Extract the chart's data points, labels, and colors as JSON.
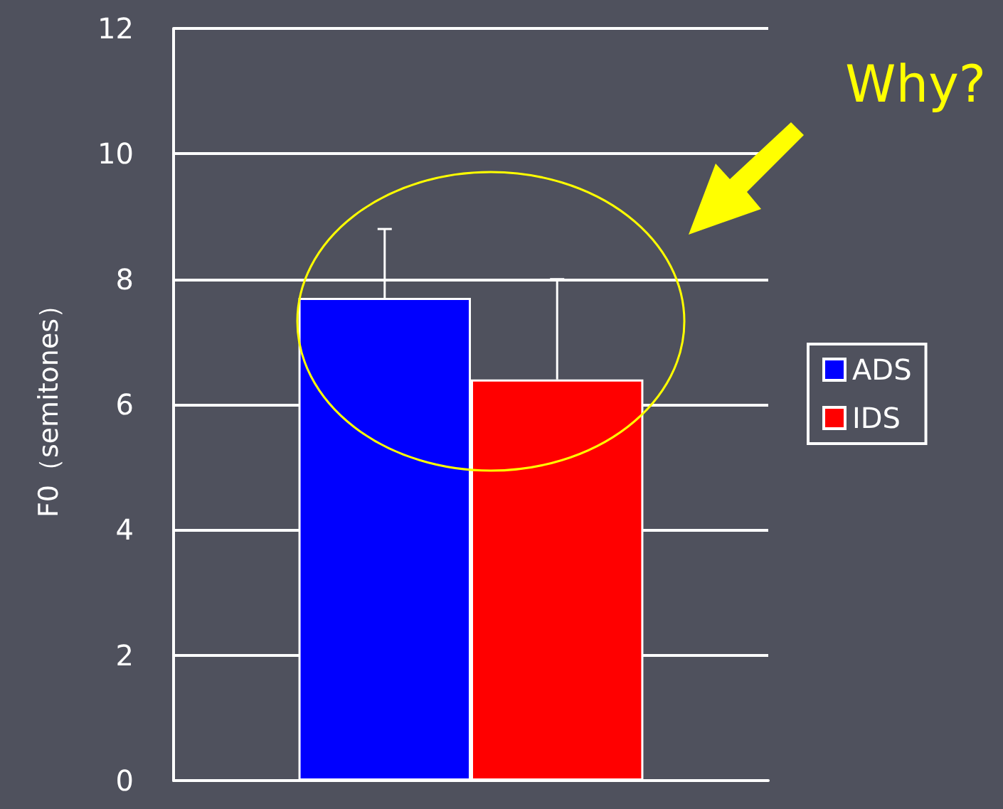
{
  "chart_data": {
    "type": "bar",
    "ylabel": "F0（semitones）",
    "categories": [
      null
    ],
    "series": [
      {
        "name": "ADS",
        "color": "#0000ff",
        "values": [
          7.7
        ],
        "errors": [
          [
            7.7,
            8.8
          ]
        ]
      },
      {
        "name": "IDS",
        "color": "#ff0000",
        "values": [
          6.4
        ],
        "errors": [
          [
            6.4,
            8.0
          ]
        ]
      }
    ],
    "ylim": [
      0,
      12
    ],
    "yticks": [
      0,
      2,
      4,
      6,
      8,
      10,
      12
    ],
    "grid": "y",
    "legend": "right",
    "annotations": [
      "Why?"
    ]
  }
}
